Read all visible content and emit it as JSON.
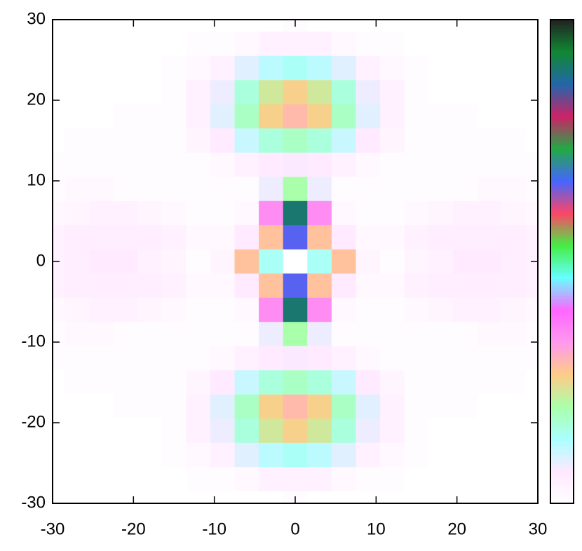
{
  "chart_data": {
    "type": "heatmap",
    "x": [
      -30,
      -27,
      -24,
      -21,
      -18,
      -15,
      -12,
      -9,
      -6,
      -3,
      0,
      3,
      6,
      9,
      12,
      15,
      18,
      21,
      24,
      27,
      30
    ],
    "y": [
      30,
      27,
      24,
      21,
      18,
      15,
      12,
      9,
      6,
      3,
      0,
      -3,
      -6,
      -9,
      -12,
      -15,
      -18,
      -21,
      -24,
      -27,
      -30
    ],
    "z": [
      [
        0,
        0,
        0,
        0,
        0,
        0,
        0,
        0,
        0,
        0,
        0.01,
        0,
        0,
        0,
        0,
        0,
        0,
        0,
        0,
        0,
        0
      ],
      [
        0,
        0,
        0,
        0,
        0,
        0,
        0.01,
        0.01,
        0.02,
        0.04,
        0.04,
        0.04,
        0.02,
        0.01,
        0.01,
        0,
        0,
        0,
        0,
        0,
        0
      ],
      [
        0,
        0,
        0,
        0,
        0,
        0.01,
        0.02,
        0.04,
        0.09,
        0.12,
        0.14,
        0.12,
        0.09,
        0.04,
        0.02,
        0.01,
        0,
        0,
        0,
        0,
        0
      ],
      [
        0,
        0,
        0,
        0,
        0,
        0.01,
        0.04,
        0.08,
        0.16,
        0.23,
        0.26,
        0.23,
        0.16,
        0.08,
        0.04,
        0.01,
        0,
        0,
        0,
        0,
        0
      ],
      [
        0,
        0,
        0,
        0.01,
        0.01,
        0.01,
        0.04,
        0.09,
        0.18,
        0.26,
        0.29,
        0.26,
        0.18,
        0.09,
        0.04,
        0.01,
        0.01,
        0.01,
        0,
        0,
        0
      ],
      [
        0,
        0.01,
        0.01,
        0.01,
        0.01,
        0.01,
        0.03,
        0.06,
        0.11,
        0.16,
        0.18,
        0.16,
        0.11,
        0.06,
        0.03,
        0.01,
        0.01,
        0.01,
        0.01,
        0.01,
        0
      ],
      [
        0.01,
        0.01,
        0.01,
        0.01,
        0.01,
        0.01,
        0.01,
        0.02,
        0.04,
        0.06,
        0.07,
        0.06,
        0.04,
        0.02,
        0.01,
        0.01,
        0.01,
        0.01,
        0.01,
        0.01,
        0.01
      ],
      [
        0.01,
        0.02,
        0.02,
        0.01,
        0.01,
        0.01,
        0.01,
        0.01,
        0.01,
        0.08,
        0.2,
        0.08,
        0.01,
        0.01,
        0.01,
        0.01,
        0.01,
        0.01,
        0.02,
        0.02,
        0.01
      ],
      [
        0.02,
        0.03,
        0.04,
        0.04,
        0.03,
        0.02,
        0.01,
        0.01,
        0.02,
        0.35,
        0.9,
        0.35,
        0.02,
        0.01,
        0.01,
        0.02,
        0.03,
        0.04,
        0.04,
        0.03,
        0.02
      ],
      [
        0.04,
        0.05,
        0.05,
        0.05,
        0.05,
        0.04,
        0.02,
        0.02,
        0.06,
        0.28,
        0.66,
        0.28,
        0.06,
        0.02,
        0.02,
        0.04,
        0.05,
        0.05,
        0.05,
        0.05,
        0.04
      ],
      [
        0.04,
        0.05,
        0.06,
        0.06,
        0.04,
        0.03,
        0.01,
        0.03,
        0.28,
        0.14,
        0,
        0.14,
        0.28,
        0.03,
        0.01,
        0.03,
        0.04,
        0.06,
        0.06,
        0.05,
        0.04
      ],
      [
        0.04,
        0.05,
        0.05,
        0.05,
        0.05,
        0.04,
        0.02,
        0.02,
        0.06,
        0.28,
        0.66,
        0.28,
        0.06,
        0.02,
        0.02,
        0.04,
        0.05,
        0.05,
        0.05,
        0.05,
        0.04
      ],
      [
        0.02,
        0.03,
        0.04,
        0.04,
        0.03,
        0.02,
        0.01,
        0.01,
        0.02,
        0.35,
        0.9,
        0.35,
        0.02,
        0.01,
        0.01,
        0.02,
        0.03,
        0.04,
        0.04,
        0.03,
        0.02
      ],
      [
        0.01,
        0.02,
        0.02,
        0.01,
        0.01,
        0.01,
        0.01,
        0.01,
        0.01,
        0.08,
        0.2,
        0.08,
        0.01,
        0.01,
        0.01,
        0.01,
        0.01,
        0.01,
        0.02,
        0.02,
        0.01
      ],
      [
        0.01,
        0.01,
        0.01,
        0.01,
        0.01,
        0.01,
        0.01,
        0.02,
        0.04,
        0.06,
        0.07,
        0.06,
        0.04,
        0.02,
        0.01,
        0.01,
        0.01,
        0.01,
        0.01,
        0.01,
        0.01
      ],
      [
        0,
        0.01,
        0.01,
        0.01,
        0.01,
        0.01,
        0.03,
        0.06,
        0.11,
        0.16,
        0.18,
        0.16,
        0.11,
        0.06,
        0.03,
        0.01,
        0.01,
        0.01,
        0.01,
        0.01,
        0
      ],
      [
        0,
        0,
        0,
        0.01,
        0.01,
        0.01,
        0.04,
        0.09,
        0.18,
        0.26,
        0.29,
        0.26,
        0.18,
        0.09,
        0.04,
        0.01,
        0.01,
        0.01,
        0,
        0,
        0
      ],
      [
        0,
        0,
        0,
        0,
        0,
        0.01,
        0.04,
        0.08,
        0.16,
        0.23,
        0.26,
        0.23,
        0.16,
        0.08,
        0.04,
        0.01,
        0,
        0,
        0,
        0,
        0
      ],
      [
        0,
        0,
        0,
        0,
        0,
        0.01,
        0.02,
        0.04,
        0.09,
        0.12,
        0.14,
        0.12,
        0.09,
        0.04,
        0.02,
        0.01,
        0,
        0,
        0,
        0,
        0
      ],
      [
        0,
        0,
        0,
        0,
        0,
        0,
        0.01,
        0.01,
        0.02,
        0.04,
        0.04,
        0.04,
        0.02,
        0.01,
        0.01,
        0,
        0,
        0,
        0,
        0,
        0
      ],
      [
        0,
        0,
        0,
        0,
        0,
        0,
        0,
        0,
        0,
        0,
        0.01,
        0,
        0,
        0,
        0,
        0,
        0,
        0,
        0,
        0,
        0
      ]
    ],
    "zlim": [
      0,
      1
    ],
    "colormap": [
      "#ffffff",
      "#ffe8ff",
      "#aaffff",
      "#aaffaa",
      "#ffcc88",
      "#ff99ee",
      "#ff66ff",
      "#66ffff",
      "#44ee44",
      "#ff4466",
      "#4466ff",
      "#22aa44",
      "#cc2266",
      "#2266aa",
      "#118833",
      "#222222"
    ],
    "xlim": [
      -30,
      30
    ],
    "ylim": [
      -30,
      30
    ],
    "xticks": [
      -30,
      -20,
      -10,
      0,
      10,
      20,
      30
    ],
    "yticks": [
      -30,
      -20,
      -10,
      0,
      10,
      20,
      30
    ]
  }
}
